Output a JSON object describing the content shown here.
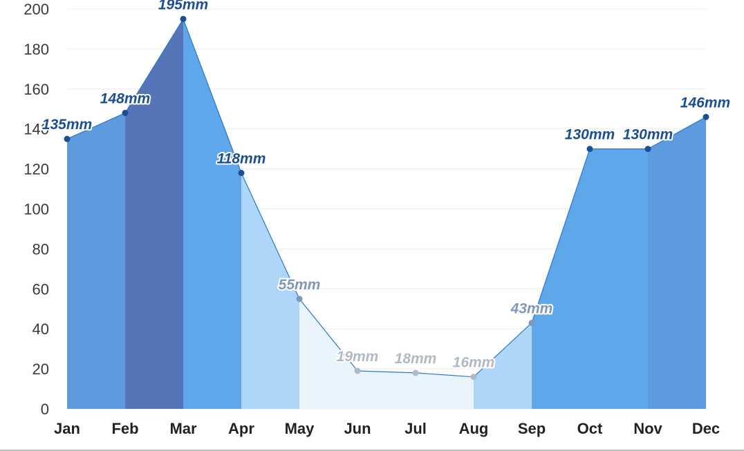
{
  "chart_data": {
    "type": "area",
    "categories": [
      "Jan",
      "Feb",
      "Mar",
      "Apr",
      "May",
      "Jun",
      "Jul",
      "Aug",
      "Sep",
      "Oct",
      "Nov",
      "Dec"
    ],
    "values": [
      135,
      148,
      195,
      118,
      55,
      19,
      18,
      16,
      43,
      130,
      130,
      146
    ],
    "data_labels": [
      "135mm",
      "148mm",
      "195mm",
      "118mm",
      "55mm",
      "19mm",
      "18mm",
      "16mm",
      "43mm",
      "130mm",
      "130mm",
      "146mm"
    ],
    "segment_colors": [
      "#5d9ade",
      "#5674b8",
      "#5ea7ea",
      "#add6f8",
      "#eaf4fd",
      "#eaf4fd",
      "#eaf4fd",
      "#add6f8",
      "#5ea7ea",
      "#5ea7ea",
      "#5d9ade"
    ],
    "label_colors": [
      "#1b4f93",
      "#1b4f93",
      "#1b4f93",
      "#1b4f93",
      "#7d98b8",
      "#b1b9c3",
      "#b1b9c3",
      "#b1b9c3",
      "#7d98b8",
      "#1b4f93",
      "#1b4f93",
      "#1b4f93"
    ],
    "line_color": "#2a78cc",
    "yticks": [
      0,
      20,
      40,
      60,
      80,
      100,
      120,
      140,
      160,
      180,
      200
    ],
    "ylim": [
      0,
      200
    ],
    "grid": true,
    "title": "",
    "xlabel": "",
    "ylabel": ""
  }
}
